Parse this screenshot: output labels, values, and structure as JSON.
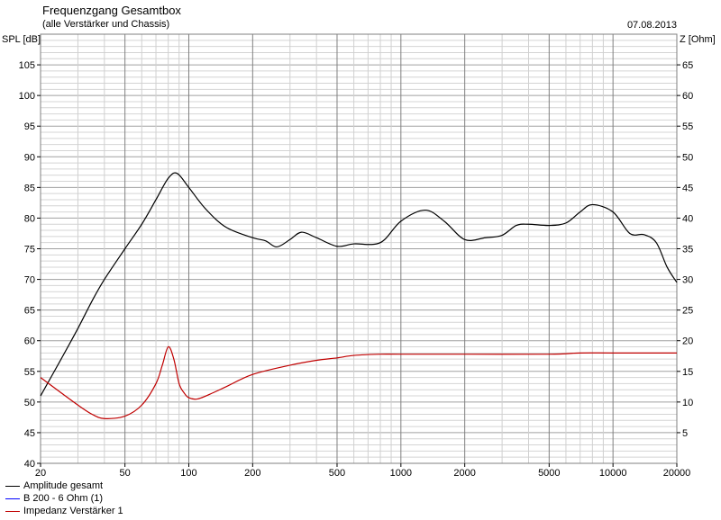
{
  "chart_data": {
    "type": "line",
    "title": "Frequenzgang Gesamtbox",
    "subtitle": "(alle Verstärker und Chassis)",
    "date": "07.08.2013",
    "ylabel": "SPL [dB]",
    "y2label": "Z [Ohm]",
    "xscale": "log",
    "xlim": [
      20,
      20000
    ],
    "ylim": [
      40,
      110
    ],
    "y2lim": [
      0,
      70
    ],
    "grid": true,
    "legend_placement": "bottom-left",
    "xticks": [
      "20",
      "50",
      "100",
      "200",
      "500",
      "1000",
      "2000",
      "5000",
      "10000",
      "20000"
    ],
    "yticks": [
      "40",
      "45",
      "50",
      "55",
      "60",
      "65",
      "70",
      "75",
      "80",
      "85",
      "90",
      "95",
      "100",
      "105"
    ],
    "y2ticks": [
      "5",
      "10",
      "15",
      "20",
      "25",
      "30",
      "35",
      "40",
      "45",
      "50",
      "55",
      "60",
      "65"
    ],
    "series": [
      {
        "name": "Amplitude gesamt",
        "color": "#000000",
        "axis": "left",
        "x": [
          20,
          25,
          30,
          35,
          40,
          50,
          60,
          70,
          80,
          88,
          100,
          120,
          150,
          200,
          230,
          260,
          300,
          340,
          400,
          500,
          600,
          800,
          1000,
          1300,
          1600,
          2000,
          2500,
          3000,
          3500,
          4000,
          5000,
          6000,
          7000,
          8000,
          10000,
          12000,
          14000,
          16000,
          18000,
          20000
        ],
        "y": [
          51,
          57,
          62,
          66.5,
          70,
          75,
          79,
          83,
          86.5,
          87.3,
          85,
          81.5,
          78.5,
          76.8,
          76.3,
          75.3,
          76.5,
          77.7,
          76.8,
          75.4,
          75.8,
          76,
          79.5,
          81.3,
          79.5,
          76.5,
          76.8,
          77.2,
          78.8,
          79,
          78.8,
          79.2,
          81,
          82.2,
          81,
          77.5,
          77.3,
          76,
          72,
          69.5
        ]
      },
      {
        "name": "B 200 - 6 Ohm (1)",
        "color": "#0000ff",
        "axis": "left",
        "x": [],
        "y": []
      },
      {
        "name": "Impedanz Verstärker 1",
        "color": "#c00000",
        "axis": "right",
        "x": [
          20,
          25,
          30,
          35,
          40,
          50,
          60,
          70,
          75,
          80,
          85,
          90,
          95,
          100,
          110,
          130,
          150,
          200,
          300,
          400,
          500,
          600,
          800,
          1000,
          2000,
          5000,
          7000,
          10000,
          20000
        ],
        "y": [
          14,
          11.5,
          9.5,
          8,
          7.3,
          7.7,
          9.5,
          13,
          16,
          19,
          17,
          13,
          11.5,
          10.7,
          10.5,
          11.5,
          12.5,
          14.5,
          16,
          16.8,
          17.2,
          17.6,
          17.8,
          17.8,
          17.8,
          17.8,
          18,
          18,
          18
        ]
      }
    ]
  }
}
